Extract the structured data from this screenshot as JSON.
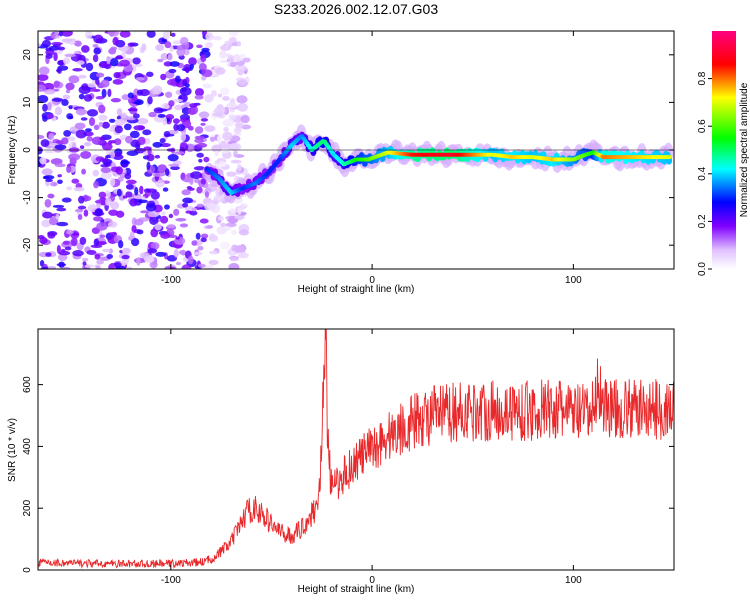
{
  "title": "S233.2026.002.12.07.G03",
  "chart_data": [
    {
      "type": "heatmap",
      "xlabel": "Height of straight line (km)",
      "ylabel": "Frequency (Hz)",
      "xlim": [
        -166,
        150
      ],
      "ylim": [
        -25,
        25
      ],
      "xticks": [
        -100,
        0,
        100
      ],
      "yticks": [
        -20,
        -10,
        0,
        10,
        20
      ],
      "colorbar": {
        "label": "Normalized spectral amplitude",
        "range": [
          0,
          1
        ],
        "ticks": [
          "0.0",
          "0.2",
          "0.4",
          "0.6",
          "0.8"
        ],
        "tick_values": [
          0.0,
          0.2,
          0.4,
          0.6,
          0.8
        ],
        "colors": [
          "#ffffff",
          "#8000ff",
          "#0000ff",
          "#00ffff",
          "#00ff00",
          "#ffff00",
          "#ff0000",
          "#ff0080"
        ]
      },
      "ridge": {
        "x": [
          -82,
          -76,
          -70,
          -64,
          -58,
          -52,
          -46,
          -40,
          -35,
          -30,
          -24,
          -19,
          -14,
          -8,
          -2,
          8,
          20,
          40,
          60,
          70,
          80,
          90,
          100,
          106,
          110,
          115,
          130,
          148
        ],
        "frequency": [
          -4,
          -6,
          -9,
          -8,
          -7,
          -5,
          -2,
          1,
          3,
          0,
          2,
          -1,
          -3,
          -2,
          -2,
          -0.5,
          -1,
          -1,
          -1,
          -1.5,
          -1.5,
          -2,
          -2,
          -1,
          -0.5,
          -1.5,
          -1.5,
          -1.5
        ],
        "amplitude": [
          0.3,
          0.35,
          0.4,
          0.3,
          0.35,
          0.3,
          0.3,
          0.4,
          0.35,
          0.45,
          0.5,
          0.4,
          0.45,
          0.55,
          0.6,
          0.7,
          0.85,
          0.9,
          0.7,
          0.75,
          0.7,
          0.75,
          0.65,
          0.6,
          0.55,
          0.8,
          0.75,
          0.7
        ]
      },
      "noise_region": {
        "x_from": -166,
        "x_to": -82,
        "amplitude": 0.15
      }
    },
    {
      "type": "line",
      "xlabel": "Height of straight line (km)",
      "ylabel": "SNR (10 * v/v)",
      "xlim": [
        -166,
        150
      ],
      "ylim": [
        0,
        780
      ],
      "xticks": [
        -100,
        0,
        100
      ],
      "yticks": [
        0,
        200,
        400,
        600
      ],
      "color": "#e8282a",
      "series": [
        {
          "name": "SNR",
          "x": [
            -166,
            -150,
            -130,
            -110,
            -95,
            -85,
            -80,
            -75,
            -70,
            -66,
            -62,
            -58,
            -55,
            -50,
            -45,
            -40,
            -36,
            -32,
            -28,
            -26,
            -24,
            -23,
            -22,
            -20,
            -15,
            -10,
            -5,
            0,
            5,
            10,
            15,
            20,
            30,
            40,
            50,
            60,
            70,
            80,
            90,
            95,
            100,
            105,
            108,
            110,
            112,
            115,
            120,
            130,
            140,
            150
          ],
          "y": [
            25,
            22,
            20,
            20,
            22,
            25,
            35,
            60,
            90,
            140,
            190,
            200,
            180,
            150,
            120,
            110,
            130,
            160,
            200,
            280,
            600,
            760,
            400,
            260,
            300,
            340,
            370,
            390,
            420,
            440,
            460,
            480,
            500,
            510,
            515,
            515,
            515,
            515,
            520,
            515,
            510,
            505,
            500,
            520,
            600,
            540,
            520,
            520,
            520,
            520
          ]
        }
      ]
    }
  ]
}
